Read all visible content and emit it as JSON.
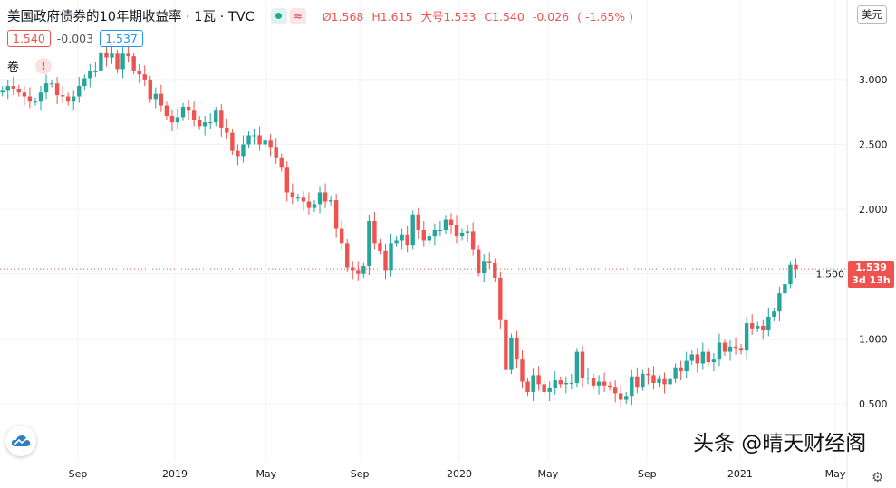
{
  "header": {
    "title": "美国政府债券的10年期收益率",
    "interval": "1瓦",
    "source": "TVC",
    "ohlc": {
      "open": "Ø1.568",
      "high": "H1.615",
      "low": "大号1.533",
      "close": "C1.540",
      "change": "-0.026",
      "change_pct": "( -1.65% )"
    }
  },
  "quote": {
    "bid": "1.540",
    "spread": "-0.003",
    "ask": "1.537"
  },
  "volume_label": "卷",
  "warning_icon": "!",
  "currency": "美元",
  "current_price": {
    "value": "1.539",
    "countdown": "3d 13h",
    "price": 1.539
  },
  "watermark": "头条 @晴天财经阁",
  "colors": {
    "up": "#26a69a",
    "down": "#ef5350",
    "grid": "#f0f3fa",
    "price_line": "#ef5350"
  },
  "chart_data": {
    "type": "candlestick",
    "interval": "weekly",
    "ylim": [
      0.052,
      3.614
    ],
    "y_ticks": [
      "0.500",
      "1.000",
      "1.500",
      "2.000",
      "2.500",
      "3.000"
    ],
    "x_ticks": [
      {
        "label": "Sep",
        "bar": 13.8
      },
      {
        "label": "2019",
        "bar": 31.5
      },
      {
        "label": "May",
        "bar": 48.2
      },
      {
        "label": "Sep",
        "bar": 65.3
      },
      {
        "label": "2020",
        "bar": 83.5
      },
      {
        "label": "May",
        "bar": 99.7
      },
      {
        "label": "Sep",
        "bar": 117.8
      },
      {
        "label": "2021",
        "bar": 134.8
      },
      {
        "label": "May",
        "bar": 152.2
      }
    ],
    "first_open": 2.9,
    "closes": [
      2.92,
      2.95,
      2.93,
      2.9,
      2.87,
      2.83,
      2.83,
      2.9,
      2.97,
      2.97,
      2.88,
      2.87,
      2.83,
      2.87,
      2.95,
      3.01,
      3.07,
      3.07,
      3.21,
      3.17,
      3.2,
      3.08,
      3.2,
      3.18,
      3.07,
      3.04,
      3.0,
      2.85,
      2.89,
      2.8,
      2.72,
      2.67,
      2.71,
      2.79,
      2.76,
      2.69,
      2.64,
      2.67,
      2.67,
      2.76,
      2.63,
      2.59,
      2.45,
      2.41,
      2.5,
      2.57,
      2.57,
      2.5,
      2.53,
      2.48,
      2.4,
      2.32,
      2.13,
      2.09,
      2.09,
      2.06,
      2.01,
      2.04,
      2.13,
      2.06,
      2.07,
      1.85,
      1.74,
      1.55,
      1.53,
      1.5,
      1.56,
      1.91,
      1.74,
      1.68,
      1.53,
      1.74,
      1.76,
      1.8,
      1.72,
      1.96,
      1.84,
      1.76,
      1.79,
      1.84,
      1.84,
      1.92,
      1.88,
      1.79,
      1.82,
      1.83,
      1.69,
      1.51,
      1.6,
      1.59,
      1.47,
      1.15,
      0.76,
      1.01,
      0.84,
      0.67,
      0.59,
      0.72,
      0.65,
      0.59,
      0.62,
      0.68,
      0.65,
      0.66,
      0.66,
      0.9,
      0.7,
      0.7,
      0.64,
      0.67,
      0.64,
      0.63,
      0.58,
      0.53,
      0.56,
      0.71,
      0.63,
      0.73,
      0.72,
      0.66,
      0.69,
      0.65,
      0.69,
      0.78,
      0.75,
      0.83,
      0.88,
      0.81,
      0.9,
      0.82,
      0.84,
      0.97,
      0.9,
      0.94,
      0.93,
      0.91,
      1.12,
      1.08,
      1.1,
      1.07,
      1.17,
      1.21,
      1.35,
      1.42,
      1.57,
      1.54
    ]
  }
}
